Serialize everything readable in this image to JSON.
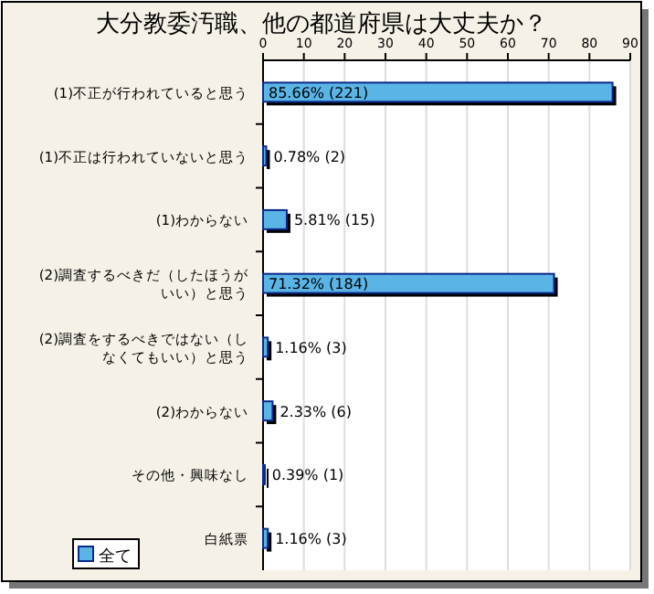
{
  "chart_data": {
    "type": "bar",
    "orientation": "horizontal",
    "title": "大分教委汚職、他の都道府県は大丈夫か？",
    "categories": [
      "(1)不正が行われていると思う",
      "(1)不正は行われていないと思う",
      "(1)わからない",
      "(2)調査するべきだ（したほうがいい）と思う",
      "(2)調査をするべきではない（しなくてもいい）と思う",
      "(2)わからない",
      "その他・興味なし",
      "白紙票"
    ],
    "series": [
      {
        "name": "全て",
        "color": "#5ab4e6",
        "values": [
          85.66,
          0.78,
          5.81,
          71.32,
          1.16,
          2.33,
          0.39,
          1.16
        ]
      }
    ],
    "value_labels": [
      "85.66% (221)",
      "0.78% (2)",
      "5.81% (15)",
      "71.32% (184)",
      "1.16% (3)",
      "2.33% (6)",
      "0.39% (1)",
      "1.16% (3)"
    ],
    "xlim": [
      0,
      90
    ],
    "xticks": [
      0,
      10,
      20,
      30,
      40,
      50,
      60,
      70,
      80,
      90
    ],
    "grid": "x",
    "legend": "bottom left"
  }
}
